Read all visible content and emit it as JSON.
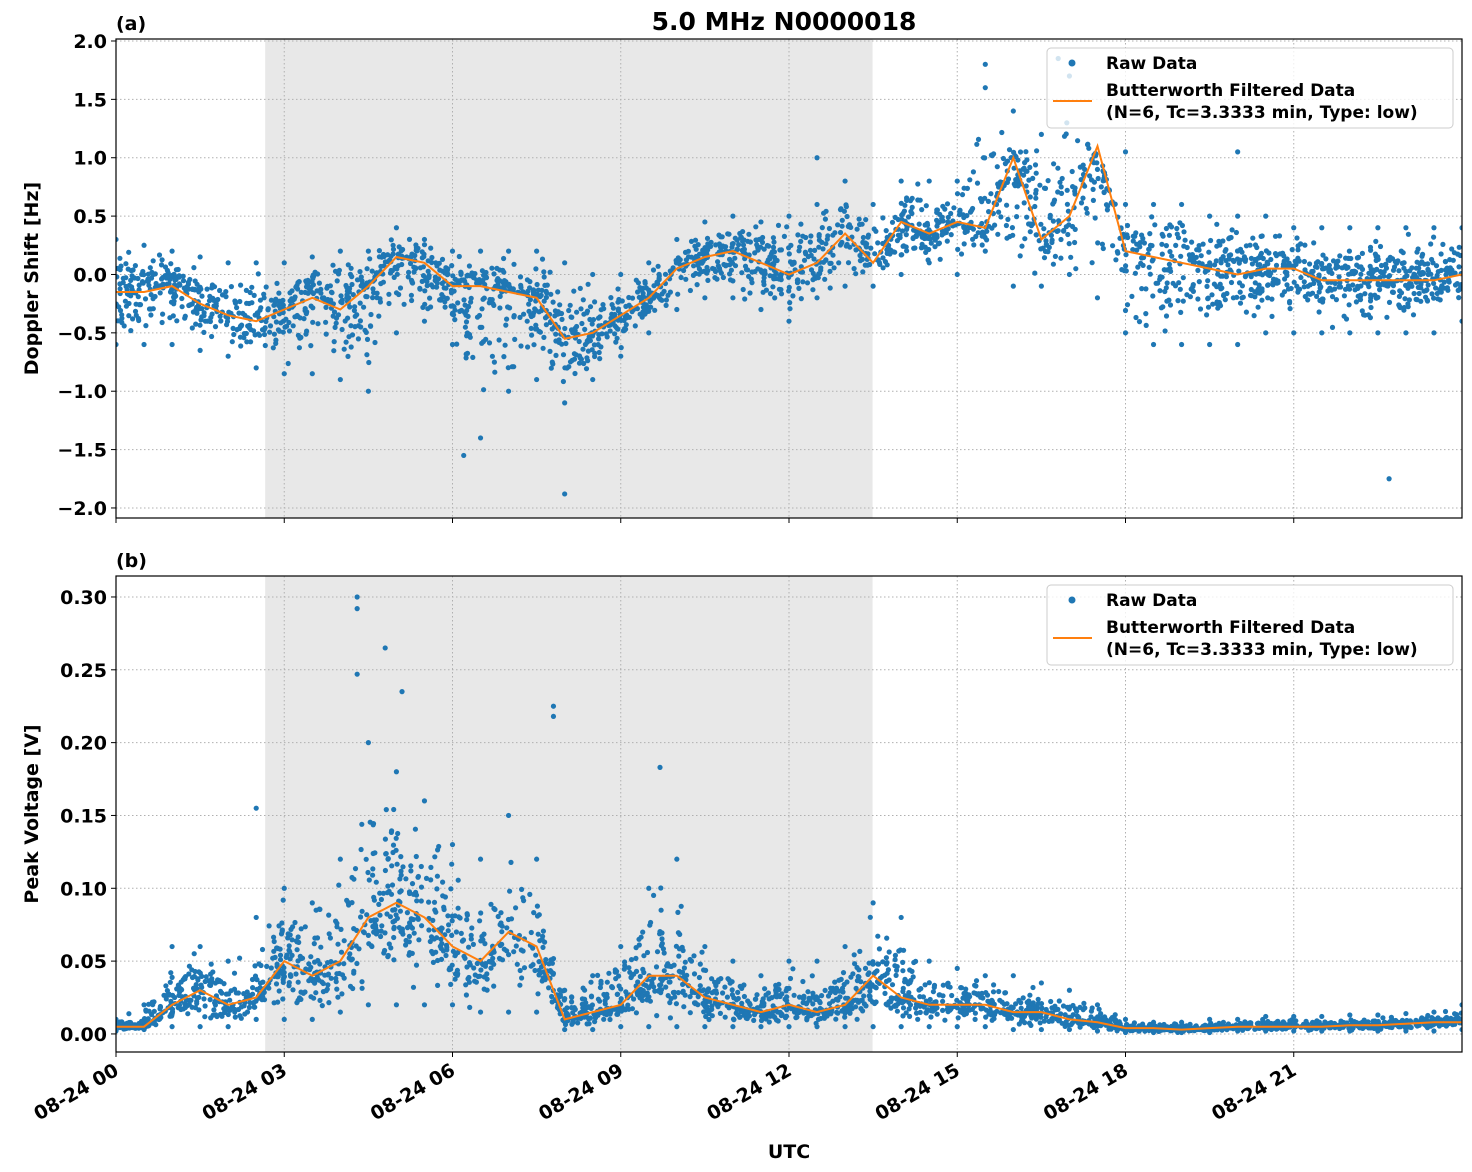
{
  "title": "5.0 MHz N0000018",
  "colors": {
    "raw": "#1f77b4",
    "filtered": "#ff7f0e",
    "shade": "#e8e8e8",
    "grid": "#b0b0b0"
  },
  "legend": {
    "raw": "Raw Data",
    "filtered_line1": "Butterworth Filtered Data",
    "filtered_line2": "(N=6, Tc=3.3333 min, Type: low)",
    "placement": "upper-right"
  },
  "xlabel": "UTC",
  "x_ticks": [
    "08-24 00",
    "08-24 03",
    "08-24 06",
    "08-24 09",
    "08-24 12",
    "08-24 15",
    "08-24 18",
    "08-24 21"
  ],
  "x_tick_hours": [
    0,
    3,
    6,
    9,
    12,
    15,
    18,
    21
  ],
  "x_range_hours": [
    0,
    24
  ],
  "shaded_interval_hours": [
    2.66,
    13.49
  ],
  "chart_data": [
    {
      "type": "scatter+line",
      "panel_label": "(a)",
      "ylabel": "Doppler Shift [Hz]",
      "ylim": [
        -2.086,
        2.017
      ],
      "y_ticks": [
        "2.0",
        "1.5",
        "1.0",
        "0.5",
        "0.0",
        "−0.5",
        "−1.0",
        "−1.5",
        "−2.0"
      ],
      "y_tick_values": [
        2.0,
        1.5,
        1.0,
        0.5,
        0.0,
        -0.5,
        -1.0,
        -1.5,
        -2.0
      ],
      "grid": true,
      "x_hours": [
        0,
        0.5,
        1,
        1.5,
        2,
        2.5,
        3,
        3.5,
        4,
        4.5,
        5,
        5.5,
        6,
        6.5,
        7,
        7.5,
        8,
        8.5,
        9,
        9.5,
        10,
        10.5,
        11,
        11.5,
        12,
        12.5,
        13,
        13.5,
        14,
        14.5,
        15,
        15.5,
        16,
        16.5,
        17,
        17.5,
        18,
        18.5,
        19,
        19.5,
        20,
        20.5,
        21,
        21.5,
        22,
        22.5,
        23,
        23.5,
        24
      ],
      "filtered": [
        -0.15,
        -0.15,
        -0.1,
        -0.25,
        -0.35,
        -0.4,
        -0.3,
        -0.2,
        -0.3,
        -0.1,
        0.15,
        0.1,
        -0.1,
        -0.1,
        -0.15,
        -0.2,
        -0.55,
        -0.5,
        -0.35,
        -0.2,
        0.05,
        0.15,
        0.2,
        0.1,
        0.0,
        0.1,
        0.35,
        0.1,
        0.45,
        0.35,
        0.45,
        0.4,
        1.0,
        0.3,
        0.5,
        1.1,
        0.2,
        0.15,
        0.1,
        0.05,
        0.0,
        0.05,
        0.05,
        -0.05,
        -0.05,
        -0.05,
        -0.05,
        -0.05,
        0.0
      ],
      "raw_min": [
        -0.6,
        -0.6,
        -0.6,
        -0.65,
        -0.7,
        -0.8,
        -0.85,
        -0.85,
        -0.9,
        -1.0,
        -0.5,
        -0.4,
        -0.6,
        -1.4,
        -1.0,
        -0.9,
        -1.1,
        -0.9,
        -0.7,
        -0.5,
        -0.3,
        -0.2,
        -0.2,
        -0.3,
        -0.4,
        -0.2,
        -0.1,
        -0.1,
        0.0,
        0.1,
        0.0,
        0.2,
        -0.1,
        -0.1,
        0.0,
        -0.2,
        -0.5,
        -0.6,
        -0.6,
        -0.6,
        -0.6,
        -0.5,
        -0.5,
        -0.5,
        -0.5,
        -0.5,
        -0.5,
        -0.5,
        -0.4
      ],
      "raw_max": [
        0.3,
        0.25,
        0.2,
        0.15,
        0.1,
        0.1,
        0.1,
        0.15,
        0.2,
        0.2,
        0.4,
        0.3,
        0.2,
        0.2,
        0.2,
        0.2,
        0.1,
        0.0,
        0.0,
        0.1,
        0.3,
        0.45,
        0.5,
        0.45,
        0.5,
        0.6,
        0.8,
        0.6,
        0.8,
        0.8,
        0.8,
        1.6,
        1.4,
        1.2,
        1.7,
        0.9,
        0.6,
        0.6,
        0.6,
        0.5,
        0.5,
        0.5,
        0.4,
        0.4,
        0.4,
        0.4,
        0.4,
        0.4,
        0.4
      ],
      "raw_outliers": [
        [
          15.5,
          1.8
        ],
        [
          16.8,
          1.85
        ],
        [
          8.0,
          -1.88
        ],
        [
          22.7,
          -1.75
        ],
        [
          6.2,
          -1.55
        ],
        [
          12.5,
          1.0
        ],
        [
          18.0,
          1.05
        ],
        [
          20.0,
          1.05
        ]
      ]
    },
    {
      "type": "scatter+line",
      "panel_label": "(b)",
      "ylabel": "Peak Voltage [V]",
      "ylim": [
        -0.0124,
        0.3144
      ],
      "y_ticks": [
        "0.30",
        "0.25",
        "0.20",
        "0.15",
        "0.10",
        "0.05",
        "0.00"
      ],
      "y_tick_values": [
        0.3,
        0.25,
        0.2,
        0.15,
        0.1,
        0.05,
        0.0
      ],
      "grid": true,
      "x_hours": [
        0,
        0.5,
        1,
        1.5,
        2,
        2.5,
        3,
        3.5,
        4,
        4.5,
        5,
        5.5,
        6,
        6.5,
        7,
        7.5,
        8,
        8.5,
        9,
        9.5,
        10,
        10.5,
        11,
        11.5,
        12,
        12.5,
        13,
        13.5,
        14,
        14.5,
        15,
        15.5,
        16,
        16.5,
        17,
        17.5,
        18,
        18.5,
        19,
        19.5,
        20,
        20.5,
        21,
        21.5,
        22,
        22.5,
        23,
        23.5,
        24
      ],
      "filtered": [
        0.005,
        0.005,
        0.02,
        0.03,
        0.02,
        0.025,
        0.05,
        0.04,
        0.05,
        0.08,
        0.09,
        0.08,
        0.06,
        0.05,
        0.07,
        0.06,
        0.01,
        0.015,
        0.02,
        0.04,
        0.04,
        0.025,
        0.02,
        0.015,
        0.02,
        0.015,
        0.02,
        0.04,
        0.025,
        0.02,
        0.02,
        0.02,
        0.015,
        0.015,
        0.01,
        0.008,
        0.004,
        0.004,
        0.003,
        0.004,
        0.005,
        0.005,
        0.005,
        0.005,
        0.006,
        0.006,
        0.007,
        0.008,
        0.008
      ],
      "raw_min": [
        0.002,
        0.003,
        0.005,
        0.005,
        0.005,
        0.01,
        0.01,
        0.01,
        0.015,
        0.02,
        0.02,
        0.02,
        0.02,
        0.015,
        0.015,
        0.015,
        0.003,
        0.003,
        0.005,
        0.005,
        0.005,
        0.005,
        0.005,
        0.005,
        0.005,
        0.005,
        0.005,
        0.005,
        0.005,
        0.005,
        0.005,
        0.005,
        0.003,
        0.003,
        0.003,
        0.002,
        0.001,
        0.001,
        0.001,
        0.001,
        0.002,
        0.002,
        0.002,
        0.002,
        0.002,
        0.002,
        0.002,
        0.002,
        0.003
      ],
      "raw_max": [
        0.01,
        0.02,
        0.06,
        0.06,
        0.05,
        0.08,
        0.1,
        0.09,
        0.12,
        0.2,
        0.18,
        0.16,
        0.13,
        0.12,
        0.15,
        0.12,
        0.03,
        0.04,
        0.06,
        0.1,
        0.12,
        0.06,
        0.05,
        0.04,
        0.05,
        0.05,
        0.06,
        0.09,
        0.08,
        0.05,
        0.045,
        0.04,
        0.04,
        0.035,
        0.03,
        0.02,
        0.01,
        0.008,
        0.008,
        0.01,
        0.01,
        0.012,
        0.012,
        0.012,
        0.013,
        0.013,
        0.014,
        0.015,
        0.02
      ],
      "raw_outliers": [
        [
          4.3,
          0.3
        ],
        [
          4.3,
          0.292
        ],
        [
          4.8,
          0.265
        ],
        [
          7.8,
          0.225
        ],
        [
          7.8,
          0.218
        ],
        [
          2.5,
          0.155
        ],
        [
          9.7,
          0.183
        ],
        [
          4.3,
          0.247
        ],
        [
          5.1,
          0.235
        ]
      ]
    }
  ]
}
